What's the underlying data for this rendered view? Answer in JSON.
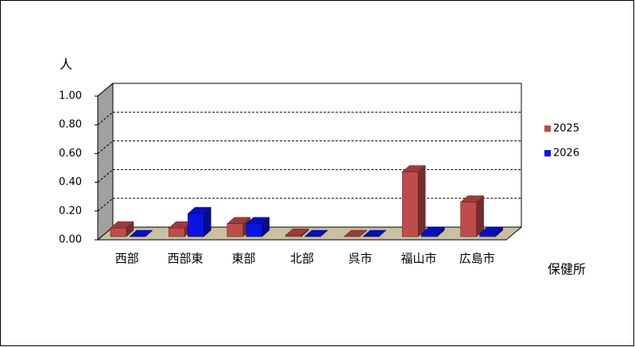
{
  "chart_data": {
    "type": "bar3d",
    "y_label": "人",
    "x_label": "保健所",
    "categories": [
      "西部",
      "西部東",
      "東部",
      "北部",
      "呉市",
      "福山市",
      "広島市"
    ],
    "series": [
      {
        "name": "2025",
        "color": "#c04b4b",
        "values": [
          0.06,
          0.06,
          0.09,
          0.01,
          0.0,
          0.45,
          0.24
        ]
      },
      {
        "name": "2026",
        "color": "#0a14e6",
        "values": [
          0.0,
          0.16,
          0.09,
          0.0,
          0.0,
          0.02,
          0.02
        ]
      }
    ],
    "ylim": [
      0,
      1
    ],
    "yticks": [
      {
        "value": 0,
        "label": "0.00"
      },
      {
        "value": 0.2,
        "label": "0.20"
      },
      {
        "value": 0.4,
        "label": "0.40"
      },
      {
        "value": 0.6,
        "label": "0.60"
      },
      {
        "value": 0.8,
        "label": "0.80"
      },
      {
        "value": 1,
        "label": "1.00"
      }
    ],
    "grid": true,
    "legend": "right"
  }
}
